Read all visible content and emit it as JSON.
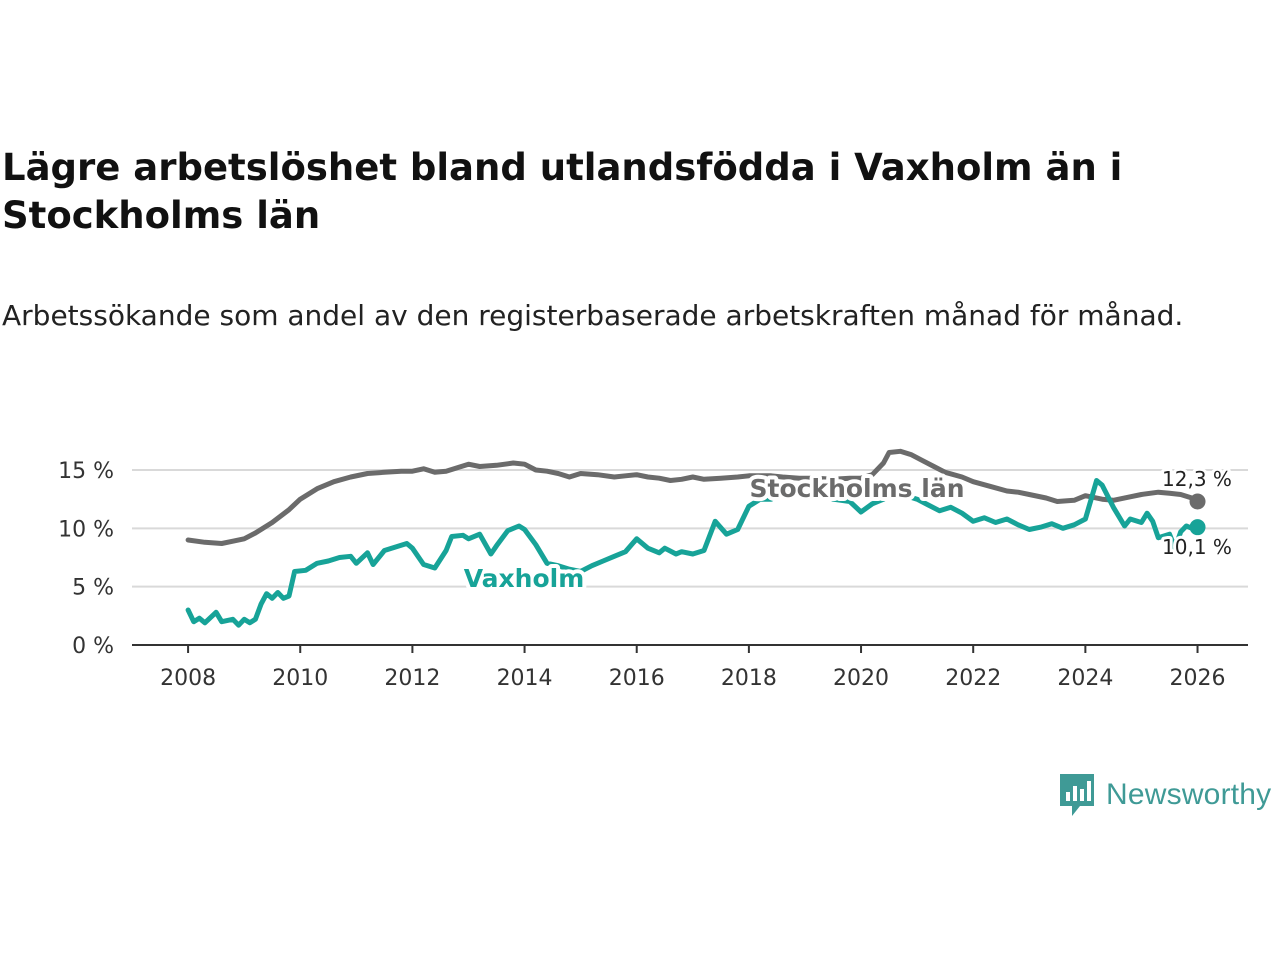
{
  "title": "Lägre arbetslöshet bland utlandsfödda i Vaxholm än i Stockholms län",
  "subtitle": "Arbetssökande som andel av den registerbaserade arbetskraften månad för månad.",
  "brand": {
    "name": "Newsworthy",
    "color": "#3f9a96"
  },
  "chart_data": {
    "type": "line",
    "title": "Lägre arbetslöshet bland utlandsfödda i Vaxholm än i Stockholms län",
    "xlabel": "",
    "ylabel": "",
    "xlim": [
      2007.0,
      2026.9
    ],
    "ylim": [
      0,
      15
    ],
    "x_ticks": [
      2008,
      2010,
      2012,
      2014,
      2016,
      2018,
      2020,
      2022,
      2024,
      2026
    ],
    "y_ticks": [
      0,
      5,
      10,
      15
    ],
    "y_tick_labels": [
      "0 %",
      "5 %",
      "10 %",
      "15 %"
    ],
    "grid": true,
    "series": [
      {
        "name": "Stockholms län",
        "color": "#6b6b6b",
        "label": "Stockholms län",
        "end_label": "12,3 %",
        "points": [
          [
            2008.0,
            9.0
          ],
          [
            2008.3,
            8.8
          ],
          [
            2008.6,
            8.7
          ],
          [
            2008.8,
            8.9
          ],
          [
            2009.0,
            9.1
          ],
          [
            2009.2,
            9.6
          ],
          [
            2009.5,
            10.5
          ],
          [
            2009.8,
            11.6
          ],
          [
            2010.0,
            12.5
          ],
          [
            2010.3,
            13.4
          ],
          [
            2010.6,
            14.0
          ],
          [
            2010.9,
            14.4
          ],
          [
            2011.2,
            14.7
          ],
          [
            2011.5,
            14.8
          ],
          [
            2011.8,
            14.9
          ],
          [
            2012.0,
            14.9
          ],
          [
            2012.2,
            15.1
          ],
          [
            2012.4,
            14.8
          ],
          [
            2012.6,
            14.9
          ],
          [
            2012.8,
            15.2
          ],
          [
            2013.0,
            15.5
          ],
          [
            2013.2,
            15.3
          ],
          [
            2013.5,
            15.4
          ],
          [
            2013.8,
            15.6
          ],
          [
            2014.0,
            15.5
          ],
          [
            2014.2,
            15.0
          ],
          [
            2014.4,
            14.9
          ],
          [
            2014.6,
            14.7
          ],
          [
            2014.8,
            14.4
          ],
          [
            2015.0,
            14.7
          ],
          [
            2015.3,
            14.6
          ],
          [
            2015.6,
            14.4
          ],
          [
            2015.8,
            14.5
          ],
          [
            2016.0,
            14.6
          ],
          [
            2016.2,
            14.4
          ],
          [
            2016.4,
            14.3
          ],
          [
            2016.6,
            14.1
          ],
          [
            2016.8,
            14.2
          ],
          [
            2017.0,
            14.4
          ],
          [
            2017.2,
            14.2
          ],
          [
            2017.5,
            14.3
          ],
          [
            2017.8,
            14.4
          ],
          [
            2018.0,
            14.5
          ],
          [
            2018.2,
            14.5
          ],
          [
            2018.4,
            14.5
          ],
          [
            2018.6,
            14.4
          ],
          [
            2018.9,
            14.3
          ],
          [
            2019.2,
            14.3
          ],
          [
            2019.5,
            14.2
          ],
          [
            2019.8,
            14.3
          ],
          [
            2020.0,
            14.3
          ],
          [
            2020.2,
            14.6
          ],
          [
            2020.4,
            15.6
          ],
          [
            2020.5,
            16.5
          ],
          [
            2020.7,
            16.6
          ],
          [
            2020.9,
            16.3
          ],
          [
            2021.1,
            15.8
          ],
          [
            2021.3,
            15.3
          ],
          [
            2021.5,
            14.8
          ],
          [
            2021.8,
            14.4
          ],
          [
            2022.0,
            14.0
          ],
          [
            2022.3,
            13.6
          ],
          [
            2022.6,
            13.2
          ],
          [
            2022.8,
            13.1
          ],
          [
            2023.0,
            12.9
          ],
          [
            2023.3,
            12.6
          ],
          [
            2023.5,
            12.3
          ],
          [
            2023.8,
            12.4
          ],
          [
            2024.0,
            12.8
          ],
          [
            2024.3,
            12.5
          ],
          [
            2024.5,
            12.4
          ],
          [
            2024.8,
            12.7
          ],
          [
            2025.0,
            12.9
          ],
          [
            2025.3,
            13.1
          ],
          [
            2025.5,
            13.0
          ],
          [
            2025.7,
            12.9
          ],
          [
            2025.9,
            12.6
          ],
          [
            2026.0,
            12.3
          ]
        ]
      },
      {
        "name": "Vaxholm",
        "color": "#17a398",
        "label": "Vaxholm",
        "end_label": "10,1 %",
        "points": [
          [
            2008.0,
            3.0
          ],
          [
            2008.1,
            2.0
          ],
          [
            2008.2,
            2.3
          ],
          [
            2008.3,
            1.9
          ],
          [
            2008.5,
            2.8
          ],
          [
            2008.6,
            2.0
          ],
          [
            2008.8,
            2.2
          ],
          [
            2008.9,
            1.7
          ],
          [
            2009.0,
            2.2
          ],
          [
            2009.1,
            1.9
          ],
          [
            2009.2,
            2.2
          ],
          [
            2009.3,
            3.5
          ],
          [
            2009.4,
            4.4
          ],
          [
            2009.5,
            4.0
          ],
          [
            2009.6,
            4.5
          ],
          [
            2009.7,
            4.0
          ],
          [
            2009.8,
            4.2
          ],
          [
            2009.9,
            6.3
          ],
          [
            2010.1,
            6.4
          ],
          [
            2010.3,
            7.0
          ],
          [
            2010.5,
            7.2
          ],
          [
            2010.7,
            7.5
          ],
          [
            2010.9,
            7.6
          ],
          [
            2011.0,
            7.0
          ],
          [
            2011.2,
            7.9
          ],
          [
            2011.3,
            6.9
          ],
          [
            2011.5,
            8.1
          ],
          [
            2011.7,
            8.4
          ],
          [
            2011.9,
            8.7
          ],
          [
            2012.0,
            8.3
          ],
          [
            2012.2,
            6.9
          ],
          [
            2012.4,
            6.6
          ],
          [
            2012.6,
            8.1
          ],
          [
            2012.7,
            9.3
          ],
          [
            2012.9,
            9.4
          ],
          [
            2013.0,
            9.1
          ],
          [
            2013.2,
            9.5
          ],
          [
            2013.4,
            7.8
          ],
          [
            2013.5,
            8.5
          ],
          [
            2013.7,
            9.8
          ],
          [
            2013.9,
            10.2
          ],
          [
            2014.0,
            9.9
          ],
          [
            2014.2,
            8.6
          ],
          [
            2014.4,
            7.0
          ],
          [
            2014.6,
            6.8
          ],
          [
            2014.8,
            6.5
          ],
          [
            2015.0,
            6.3
          ],
          [
            2015.2,
            6.8
          ],
          [
            2015.4,
            7.2
          ],
          [
            2015.6,
            7.6
          ],
          [
            2015.8,
            8.0
          ],
          [
            2016.0,
            9.1
          ],
          [
            2016.2,
            8.3
          ],
          [
            2016.4,
            7.9
          ],
          [
            2016.5,
            8.3
          ],
          [
            2016.7,
            7.8
          ],
          [
            2016.8,
            8.0
          ],
          [
            2017.0,
            7.8
          ],
          [
            2017.2,
            8.1
          ],
          [
            2017.4,
            10.6
          ],
          [
            2017.6,
            9.5
          ],
          [
            2017.8,
            9.9
          ],
          [
            2018.0,
            11.9
          ],
          [
            2018.2,
            12.5
          ],
          [
            2018.4,
            12.5
          ],
          [
            2018.6,
            13.6
          ],
          [
            2018.8,
            12.8
          ],
          [
            2019.0,
            13.5
          ],
          [
            2019.3,
            13.0
          ],
          [
            2019.5,
            12.5
          ],
          [
            2019.8,
            12.3
          ],
          [
            2020.0,
            11.4
          ],
          [
            2020.2,
            12.1
          ],
          [
            2020.4,
            12.5
          ],
          [
            2020.6,
            13.1
          ],
          [
            2020.8,
            12.8
          ],
          [
            2021.0,
            12.5
          ],
          [
            2021.2,
            12.0
          ],
          [
            2021.4,
            11.5
          ],
          [
            2021.6,
            11.8
          ],
          [
            2021.8,
            11.3
          ],
          [
            2022.0,
            10.6
          ],
          [
            2022.2,
            10.9
          ],
          [
            2022.4,
            10.5
          ],
          [
            2022.6,
            10.8
          ],
          [
            2022.8,
            10.3
          ],
          [
            2023.0,
            9.9
          ],
          [
            2023.2,
            10.1
          ],
          [
            2023.4,
            10.4
          ],
          [
            2023.6,
            10.0
          ],
          [
            2023.8,
            10.3
          ],
          [
            2024.0,
            10.8
          ],
          [
            2024.2,
            14.1
          ],
          [
            2024.3,
            13.7
          ],
          [
            2024.5,
            11.8
          ],
          [
            2024.7,
            10.2
          ],
          [
            2024.8,
            10.8
          ],
          [
            2025.0,
            10.5
          ],
          [
            2025.1,
            11.3
          ],
          [
            2025.2,
            10.6
          ],
          [
            2025.3,
            9.2
          ],
          [
            2025.5,
            9.5
          ],
          [
            2025.6,
            8.3
          ],
          [
            2025.7,
            9.7
          ],
          [
            2025.8,
            10.2
          ],
          [
            2025.9,
            10.0
          ],
          [
            2026.0,
            10.1
          ]
        ]
      }
    ]
  }
}
